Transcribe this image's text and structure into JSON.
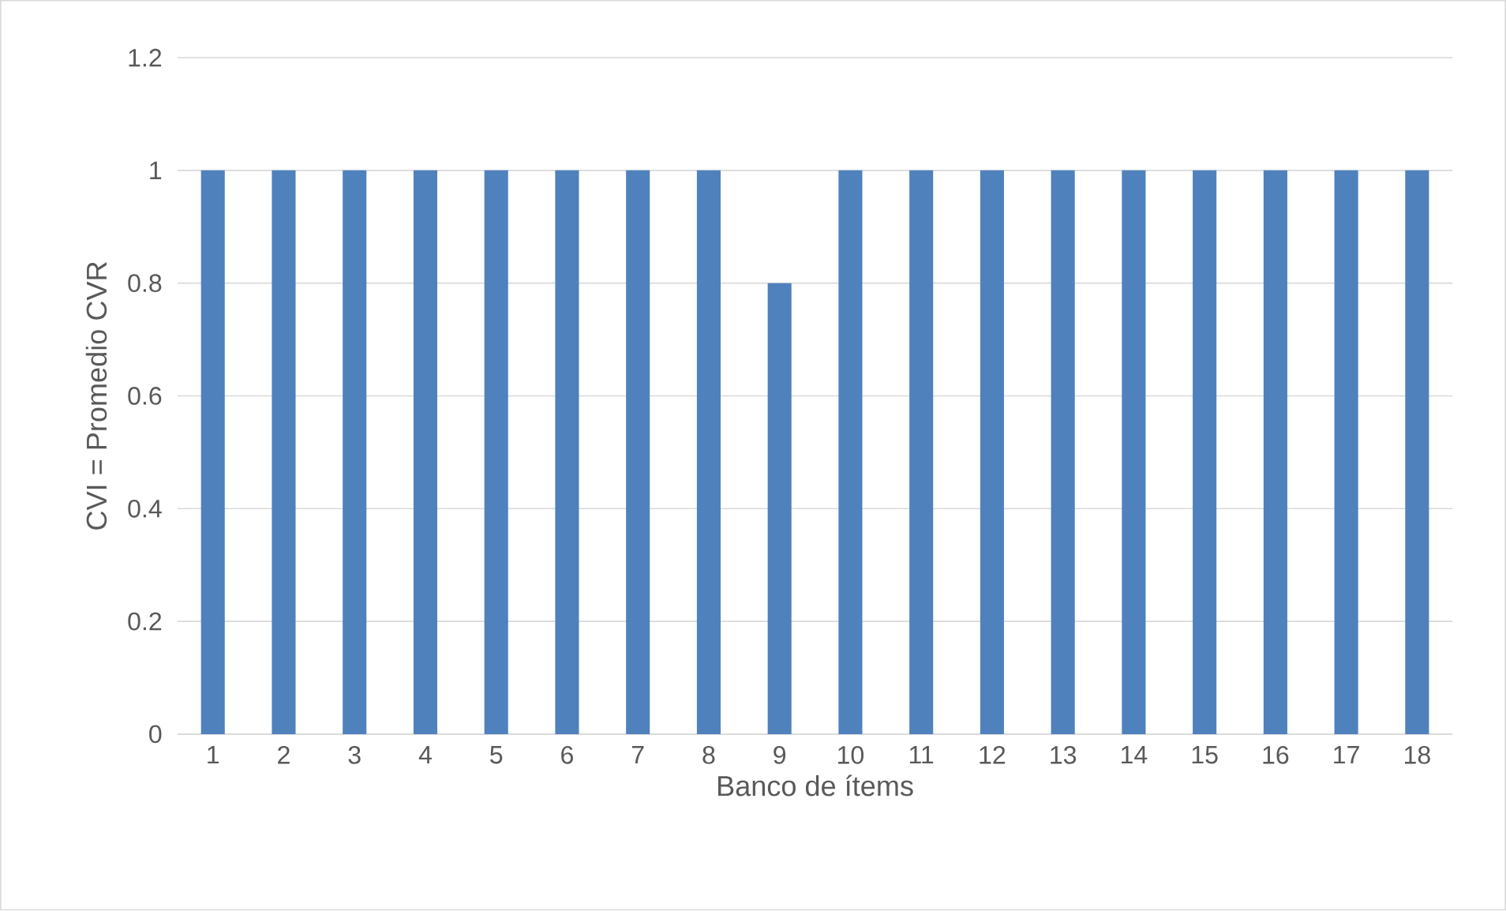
{
  "chart_data": {
    "type": "bar",
    "xlabel": "Banco de ítems",
    "ylabel": "CVI = Promedio CVR",
    "categories": [
      "1",
      "2",
      "3",
      "4",
      "5",
      "6",
      "7",
      "8",
      "9",
      "10",
      "11",
      "12",
      "13",
      "14",
      "15",
      "16",
      "17",
      "18"
    ],
    "values": [
      1,
      1,
      1,
      1,
      1,
      1,
      1,
      1,
      0.8,
      1,
      1,
      1,
      1,
      1,
      1,
      1,
      1,
      1
    ],
    "color": "#4f81bd",
    "ylim": [
      0,
      1.2
    ],
    "yticks": [
      0,
      0.2,
      0.4,
      0.6,
      0.8,
      1,
      1.2
    ],
    "grid": "y"
  }
}
